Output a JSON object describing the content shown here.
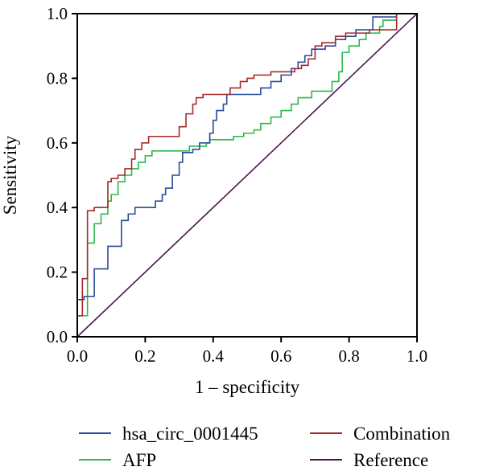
{
  "chart_data": {
    "type": "line",
    "xlabel": "1 – specificity",
    "ylabel": "Sensitivity",
    "xlim": [
      0.0,
      1.0
    ],
    "ylim": [
      0.0,
      1.0
    ],
    "xticks": [
      "0.0",
      "0.2",
      "0.4",
      "0.6",
      "0.8",
      "1.0"
    ],
    "yticks": [
      "0.0",
      "0.2",
      "0.4",
      "0.6",
      "0.8",
      "1.0"
    ],
    "grid": false,
    "legend_position": "bottom",
    "series": [
      {
        "name": "hsa_circ_0001445",
        "color": "#2b4a9b",
        "points": [
          [
            0.0,
            0.0
          ],
          [
            0.0,
            0.115
          ],
          [
            0.02,
            0.115
          ],
          [
            0.02,
            0.125
          ],
          [
            0.05,
            0.125
          ],
          [
            0.05,
            0.21
          ],
          [
            0.09,
            0.21
          ],
          [
            0.09,
            0.28
          ],
          [
            0.13,
            0.28
          ],
          [
            0.13,
            0.36
          ],
          [
            0.15,
            0.36
          ],
          [
            0.15,
            0.38
          ],
          [
            0.17,
            0.38
          ],
          [
            0.17,
            0.4
          ],
          [
            0.23,
            0.4
          ],
          [
            0.23,
            0.42
          ],
          [
            0.25,
            0.42
          ],
          [
            0.25,
            0.44
          ],
          [
            0.26,
            0.44
          ],
          [
            0.26,
            0.46
          ],
          [
            0.28,
            0.46
          ],
          [
            0.28,
            0.5
          ],
          [
            0.3,
            0.5
          ],
          [
            0.3,
            0.54
          ],
          [
            0.31,
            0.54
          ],
          [
            0.31,
            0.57
          ],
          [
            0.34,
            0.57
          ],
          [
            0.34,
            0.58
          ],
          [
            0.36,
            0.58
          ],
          [
            0.36,
            0.6
          ],
          [
            0.39,
            0.6
          ],
          [
            0.39,
            0.63
          ],
          [
            0.4,
            0.63
          ],
          [
            0.4,
            0.67
          ],
          [
            0.41,
            0.67
          ],
          [
            0.41,
            0.7
          ],
          [
            0.43,
            0.7
          ],
          [
            0.43,
            0.72
          ],
          [
            0.44,
            0.72
          ],
          [
            0.44,
            0.75
          ],
          [
            0.54,
            0.75
          ],
          [
            0.54,
            0.77
          ],
          [
            0.57,
            0.77
          ],
          [
            0.57,
            0.79
          ],
          [
            0.6,
            0.79
          ],
          [
            0.6,
            0.81
          ],
          [
            0.63,
            0.81
          ],
          [
            0.63,
            0.83
          ],
          [
            0.65,
            0.83
          ],
          [
            0.65,
            0.85
          ],
          [
            0.67,
            0.85
          ],
          [
            0.67,
            0.87
          ],
          [
            0.69,
            0.87
          ],
          [
            0.69,
            0.89
          ],
          [
            0.73,
            0.89
          ],
          [
            0.73,
            0.9
          ],
          [
            0.76,
            0.9
          ],
          [
            0.76,
            0.92
          ],
          [
            0.79,
            0.92
          ],
          [
            0.79,
            0.93
          ],
          [
            0.82,
            0.93
          ],
          [
            0.82,
            0.95
          ],
          [
            0.87,
            0.95
          ],
          [
            0.87,
            0.99
          ],
          [
            0.94,
            0.99
          ],
          [
            0.94,
            1.0
          ],
          [
            1.0,
            1.0
          ]
        ]
      },
      {
        "name": "AFP",
        "color": "#2db84a",
        "points": [
          [
            0.0,
            0.0
          ],
          [
            0.0,
            0.065
          ],
          [
            0.03,
            0.065
          ],
          [
            0.03,
            0.29
          ],
          [
            0.05,
            0.29
          ],
          [
            0.05,
            0.35
          ],
          [
            0.07,
            0.35
          ],
          [
            0.07,
            0.38
          ],
          [
            0.09,
            0.38
          ],
          [
            0.09,
            0.42
          ],
          [
            0.1,
            0.42
          ],
          [
            0.1,
            0.44
          ],
          [
            0.12,
            0.44
          ],
          [
            0.12,
            0.48
          ],
          [
            0.14,
            0.48
          ],
          [
            0.14,
            0.5
          ],
          [
            0.16,
            0.5
          ],
          [
            0.16,
            0.52
          ],
          [
            0.18,
            0.52
          ],
          [
            0.18,
            0.54
          ],
          [
            0.2,
            0.54
          ],
          [
            0.2,
            0.56
          ],
          [
            0.22,
            0.56
          ],
          [
            0.22,
            0.575
          ],
          [
            0.33,
            0.575
          ],
          [
            0.33,
            0.59
          ],
          [
            0.38,
            0.59
          ],
          [
            0.38,
            0.6
          ],
          [
            0.39,
            0.6
          ],
          [
            0.39,
            0.61
          ],
          [
            0.46,
            0.61
          ],
          [
            0.46,
            0.62
          ],
          [
            0.49,
            0.62
          ],
          [
            0.49,
            0.63
          ],
          [
            0.52,
            0.63
          ],
          [
            0.52,
            0.64
          ],
          [
            0.54,
            0.64
          ],
          [
            0.54,
            0.66
          ],
          [
            0.57,
            0.66
          ],
          [
            0.57,
            0.68
          ],
          [
            0.6,
            0.68
          ],
          [
            0.6,
            0.7
          ],
          [
            0.63,
            0.7
          ],
          [
            0.63,
            0.72
          ],
          [
            0.65,
            0.72
          ],
          [
            0.65,
            0.74
          ],
          [
            0.69,
            0.74
          ],
          [
            0.69,
            0.76
          ],
          [
            0.75,
            0.76
          ],
          [
            0.75,
            0.79
          ],
          [
            0.77,
            0.79
          ],
          [
            0.77,
            0.82
          ],
          [
            0.78,
            0.82
          ],
          [
            0.78,
            0.88
          ],
          [
            0.8,
            0.88
          ],
          [
            0.8,
            0.9
          ],
          [
            0.83,
            0.9
          ],
          [
            0.83,
            0.92
          ],
          [
            0.85,
            0.92
          ],
          [
            0.85,
            0.94
          ],
          [
            0.89,
            0.94
          ],
          [
            0.89,
            0.96
          ],
          [
            0.9,
            0.96
          ],
          [
            0.9,
            0.98
          ],
          [
            0.94,
            0.98
          ],
          [
            0.94,
            1.0
          ],
          [
            1.0,
            1.0
          ]
        ]
      },
      {
        "name": "Combination",
        "color": "#a52a2a",
        "points": [
          [
            0.0,
            0.0
          ],
          [
            0.0,
            0.065
          ],
          [
            0.015,
            0.065
          ],
          [
            0.015,
            0.18
          ],
          [
            0.03,
            0.18
          ],
          [
            0.03,
            0.39
          ],
          [
            0.05,
            0.39
          ],
          [
            0.05,
            0.4
          ],
          [
            0.09,
            0.4
          ],
          [
            0.09,
            0.48
          ],
          [
            0.1,
            0.48
          ],
          [
            0.1,
            0.49
          ],
          [
            0.12,
            0.49
          ],
          [
            0.12,
            0.5
          ],
          [
            0.14,
            0.5
          ],
          [
            0.14,
            0.52
          ],
          [
            0.16,
            0.52
          ],
          [
            0.16,
            0.55
          ],
          [
            0.17,
            0.55
          ],
          [
            0.17,
            0.58
          ],
          [
            0.19,
            0.58
          ],
          [
            0.19,
            0.6
          ],
          [
            0.21,
            0.6
          ],
          [
            0.21,
            0.62
          ],
          [
            0.3,
            0.62
          ],
          [
            0.3,
            0.65
          ],
          [
            0.32,
            0.65
          ],
          [
            0.32,
            0.69
          ],
          [
            0.34,
            0.69
          ],
          [
            0.34,
            0.72
          ],
          [
            0.35,
            0.72
          ],
          [
            0.35,
            0.74
          ],
          [
            0.37,
            0.74
          ],
          [
            0.37,
            0.75
          ],
          [
            0.45,
            0.75
          ],
          [
            0.45,
            0.77
          ],
          [
            0.48,
            0.77
          ],
          [
            0.48,
            0.79
          ],
          [
            0.5,
            0.79
          ],
          [
            0.5,
            0.8
          ],
          [
            0.52,
            0.8
          ],
          [
            0.52,
            0.81
          ],
          [
            0.57,
            0.81
          ],
          [
            0.57,
            0.82
          ],
          [
            0.64,
            0.82
          ],
          [
            0.64,
            0.83
          ],
          [
            0.66,
            0.83
          ],
          [
            0.66,
            0.84
          ],
          [
            0.68,
            0.84
          ],
          [
            0.68,
            0.86
          ],
          [
            0.7,
            0.86
          ],
          [
            0.7,
            0.9
          ],
          [
            0.72,
            0.9
          ],
          [
            0.72,
            0.91
          ],
          [
            0.76,
            0.91
          ],
          [
            0.76,
            0.93
          ],
          [
            0.79,
            0.93
          ],
          [
            0.79,
            0.94
          ],
          [
            0.86,
            0.94
          ],
          [
            0.86,
            0.95
          ],
          [
            0.94,
            0.95
          ],
          [
            0.94,
            1.0
          ],
          [
            1.0,
            1.0
          ]
        ]
      },
      {
        "name": "Reference",
        "color": "#4b1450",
        "points": [
          [
            0.0,
            0.0
          ],
          [
            1.0,
            1.0
          ]
        ]
      }
    ]
  }
}
